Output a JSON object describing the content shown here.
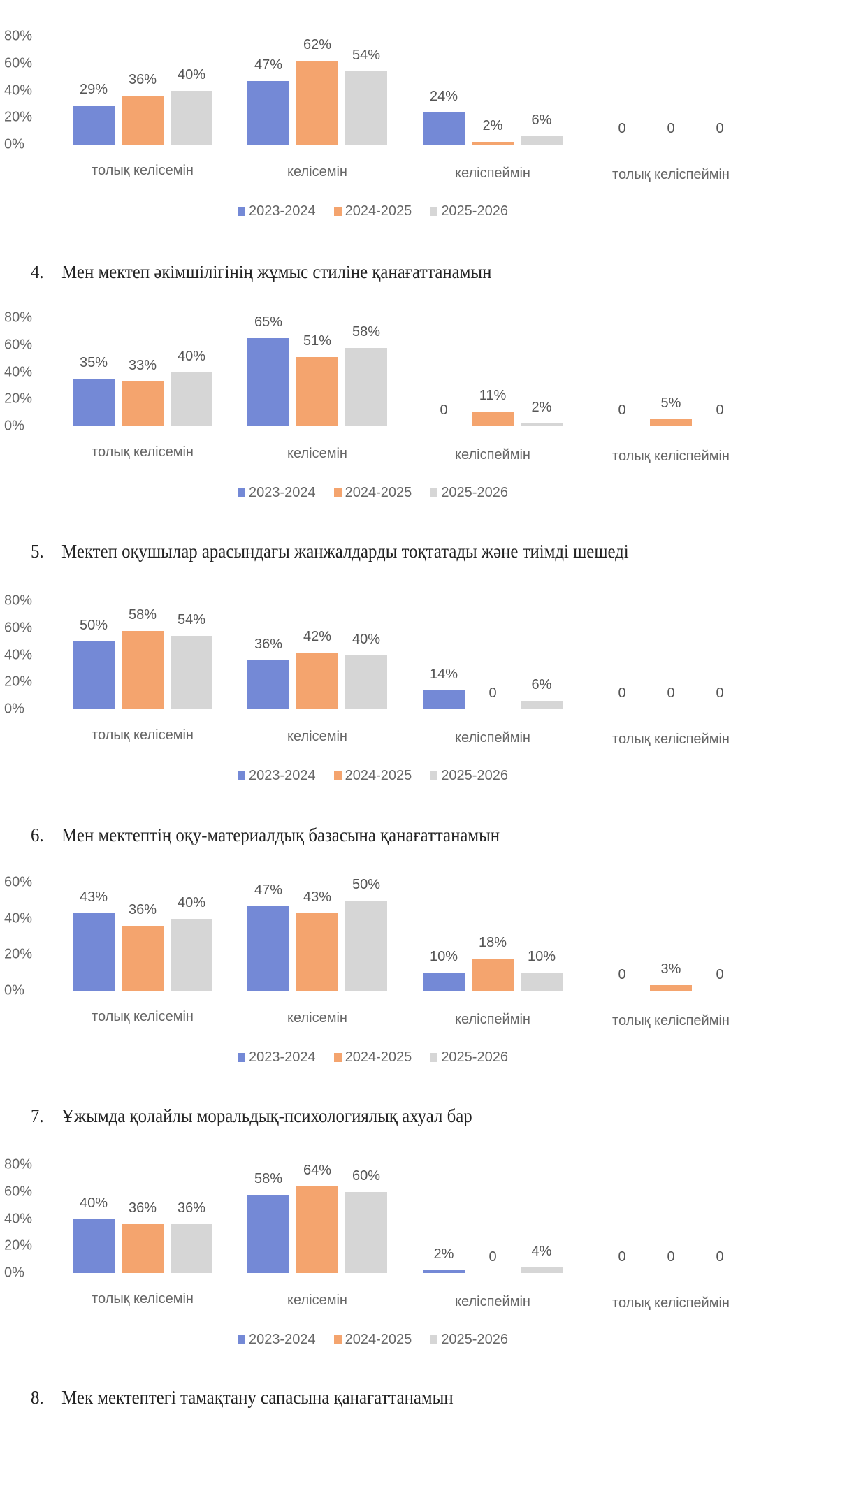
{
  "colors": {
    "2023-2024": "#7489d6",
    "2024-2025": "#f4a46e",
    "2025-2026": "#d6d6d6"
  },
  "titles": [
    {
      "num": "4.",
      "text": "Мен мектеп әкімшілігінің жұмыс стиліне қанағаттанамын"
    },
    {
      "num": "5.",
      "text": "Мектеп оқушылар арасындағы жанжалдарды тоқтатады және тиімді шешеді"
    },
    {
      "num": "6.",
      "text": "Мен мектептің оқу-материалдық базасына қанағаттанамын"
    },
    {
      "num": "7.",
      "text": "Ұжымда қолайлы моральдық-психологиялық ахуал бар"
    },
    {
      "num": "8.",
      "text": "Мек мектептегі тамақтану сапасына қанағаттанамын"
    }
  ],
  "chart_data": [
    {
      "type": "bar",
      "title": "",
      "categories": [
        "толық келісемін",
        "келісемін",
        "келіспеймін",
        "толық келіспеймін"
      ],
      "yticks": [
        "80%",
        "60%",
        "40%",
        "20%",
        "0%"
      ],
      "ylim": [
        0,
        80
      ],
      "series": [
        {
          "name": "2023-2024",
          "values": [
            29,
            47,
            24,
            0
          ],
          "labels": [
            "29%",
            "47%",
            "24%",
            "0"
          ]
        },
        {
          "name": "2024-2025",
          "values": [
            36,
            62,
            2,
            0
          ],
          "labels": [
            "36%",
            "62%",
            "2%",
            "0"
          ]
        },
        {
          "name": "2025-2026",
          "values": [
            40,
            54,
            6,
            0
          ],
          "labels": [
            "40%",
            "54%",
            "6%",
            "0"
          ]
        }
      ]
    },
    {
      "type": "bar",
      "title": "Мен мектеп әкімшілігінің жұмыс стиліне қанағаттанамын",
      "categories": [
        "толық келісемін",
        "келісемін",
        "келіспеймін",
        "толық келіспеймін"
      ],
      "yticks": [
        "80%",
        "60%",
        "40%",
        "20%",
        "0%"
      ],
      "ylim": [
        0,
        80
      ],
      "series": [
        {
          "name": "2023-2024",
          "values": [
            35,
            65,
            0,
            0
          ],
          "labels": [
            "35%",
            "65%",
            "0",
            "0"
          ]
        },
        {
          "name": "2024-2025",
          "values": [
            33,
            51,
            11,
            5
          ],
          "labels": [
            "33%",
            "51%",
            "11%",
            "5%"
          ]
        },
        {
          "name": "2025-2026",
          "values": [
            40,
            58,
            2,
            0
          ],
          "labels": [
            "40%",
            "58%",
            "2%",
            "0"
          ]
        }
      ]
    },
    {
      "type": "bar",
      "title": "Мектеп оқушылар арасындағы жанжалдарды тоқтатады және тиімді шешеді",
      "categories": [
        "толық келісемін",
        "келісемін",
        "келіспеймін",
        "толық келіспеймін"
      ],
      "yticks": [
        "80%",
        "60%",
        "40%",
        "20%",
        "0%"
      ],
      "ylim": [
        0,
        80
      ],
      "series": [
        {
          "name": "2023-2024",
          "values": [
            50,
            36,
            14,
            0
          ],
          "labels": [
            "50%",
            "36%",
            "14%",
            "0"
          ]
        },
        {
          "name": "2024-2025",
          "values": [
            58,
            42,
            0,
            0
          ],
          "labels": [
            "58%",
            "42%",
            "0",
            "0"
          ]
        },
        {
          "name": "2025-2026",
          "values": [
            54,
            40,
            6,
            0
          ],
          "labels": [
            "54%",
            "40%",
            "6%",
            "0"
          ]
        }
      ]
    },
    {
      "type": "bar",
      "title": "Мен мектептің оқу-материалдық базасына қанағаттанамын",
      "categories": [
        "толық келісемін",
        "келісемін",
        "келіспеймін",
        "толық келіспеймін"
      ],
      "yticks": [
        "60%",
        "40%",
        "20%",
        "0%"
      ],
      "ylim": [
        0,
        60
      ],
      "series": [
        {
          "name": "2023-2024",
          "values": [
            43,
            47,
            10,
            0
          ],
          "labels": [
            "43%",
            "47%",
            "10%",
            "0"
          ]
        },
        {
          "name": "2024-2025",
          "values": [
            36,
            43,
            18,
            3
          ],
          "labels": [
            "36%",
            "43%",
            "18%",
            "3%"
          ]
        },
        {
          "name": "2025-2026",
          "values": [
            40,
            50,
            10,
            0
          ],
          "labels": [
            "40%",
            "50%",
            "10%",
            "0"
          ]
        }
      ]
    },
    {
      "type": "bar",
      "title": "Ұжымда қолайлы моральдық-психологиялық ахуал бар",
      "categories": [
        "толық келісемін",
        "келісемін",
        "келіспеймін",
        "толық келіспеймін"
      ],
      "yticks": [
        "80%",
        "60%",
        "40%",
        "20%",
        "0%"
      ],
      "ylim": [
        0,
        80
      ],
      "series": [
        {
          "name": "2023-2024",
          "values": [
            40,
            58,
            2,
            0
          ],
          "labels": [
            "40%",
            "58%",
            "2%",
            "0"
          ]
        },
        {
          "name": "2024-2025",
          "values": [
            36,
            64,
            0,
            0
          ],
          "labels": [
            "36%",
            "64%",
            "0",
            "0"
          ]
        },
        {
          "name": "2025-2026",
          "values": [
            36,
            60,
            4,
            0
          ],
          "labels": [
            "36%",
            "60%",
            "4%",
            "0"
          ]
        }
      ]
    }
  ]
}
